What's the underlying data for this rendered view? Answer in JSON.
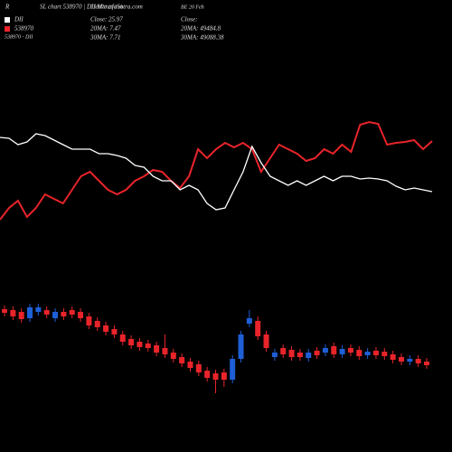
{
  "header": {
    "corner": "R",
    "title": "SL chart 538970 | DII MunafaSutra.com",
    "legend": [
      "DII",
      "538970",
      "538970 - DII"
    ],
    "stock": [
      "538970 20 Feb",
      "Close: 25.97",
      "20MA: 7.47",
      "30MA: 7.71"
    ],
    "index": [
      "BE 20 Feb",
      "Close:",
      "20MA: 49484.8",
      "30MA: 49088.38"
    ]
  },
  "chart_data": [
    {
      "type": "line",
      "ylim": [
        0,
        500
      ],
      "series": [
        {
          "name": "538970",
          "color": "#e8242a",
          "values": [
            257,
            270,
            278,
            260,
            270,
            285,
            280,
            275,
            290,
            305,
            310,
            300,
            290,
            285,
            290,
            300,
            305,
            312,
            310,
            300,
            292,
            305,
            335,
            325,
            335,
            342,
            337,
            342,
            335,
            310,
            325,
            340,
            335,
            330,
            322,
            325,
            335,
            330,
            340,
            332,
            362,
            365,
            363,
            340,
            342,
            343,
            345,
            335,
            344
          ]
        },
        {
          "name": "DII",
          "color": "#ffffff",
          "values": [
            348,
            347,
            340,
            343,
            352,
            350,
            345,
            340,
            335,
            335,
            335,
            330,
            330,
            328,
            325,
            317,
            315,
            305,
            300,
            300,
            290,
            295,
            290,
            275,
            268,
            270,
            290,
            310,
            338,
            320,
            305,
            300,
            295,
            300,
            295,
            300,
            305,
            300,
            305,
            305,
            302,
            303,
            302,
            300,
            294,
            290,
            292,
            290,
            288
          ]
        }
      ]
    },
    {
      "type": "candlestick",
      "ylim": [
        0,
        500
      ],
      "up_color": "#1f5fd6",
      "down_color": "#e8242a",
      "open": [
        158,
        157,
        155,
        148,
        155,
        157,
        148,
        155,
        157,
        155,
        150,
        145,
        140,
        136,
        130,
        125,
        122,
        120,
        118,
        115,
        110,
        105,
        100,
        97,
        90,
        87,
        88,
        80,
        103,
        142,
        145,
        130,
        105,
        115,
        113,
        110,
        104,
        112,
        110,
        117,
        108,
        115,
        113,
        107,
        112,
        111,
        108,
        105,
        100,
        103,
        100
      ],
      "close": [
        154,
        150,
        147,
        160,
        160,
        152,
        155,
        150,
        152,
        148,
        140,
        138,
        133,
        130,
        122,
        118,
        116,
        115,
        110,
        108,
        103,
        98,
        93,
        88,
        82,
        80,
        80,
        103,
        130,
        148,
        128,
        115,
        110,
        108,
        105,
        105,
        110,
        107,
        115,
        108,
        114,
        110,
        106,
        111,
        107,
        106,
        102,
        100,
        103,
        98,
        96
      ],
      "high": [
        162,
        161,
        159,
        164,
        164,
        161,
        159,
        159,
        161,
        159,
        154,
        149,
        144,
        140,
        134,
        129,
        126,
        124,
        122,
        130,
        114,
        109,
        104,
        101,
        94,
        91,
        92,
        107,
        134,
        157,
        150,
        134,
        114,
        119,
        117,
        114,
        114,
        116,
        119,
        121,
        118,
        119,
        117,
        115,
        116,
        115,
        112,
        109,
        107,
        107,
        104
      ],
      "low": [
        150,
        146,
        143,
        144,
        151,
        148,
        144,
        146,
        148,
        144,
        136,
        134,
        129,
        126,
        118,
        114,
        112,
        111,
        106,
        104,
        99,
        94,
        89,
        84,
        78,
        65,
        72,
        76,
        99,
        138,
        124,
        111,
        101,
        104,
        101,
        101,
        100,
        103,
        106,
        104,
        104,
        106,
        102,
        103,
        103,
        102,
        98,
        96,
        96,
        94,
        92
      ]
    }
  ]
}
